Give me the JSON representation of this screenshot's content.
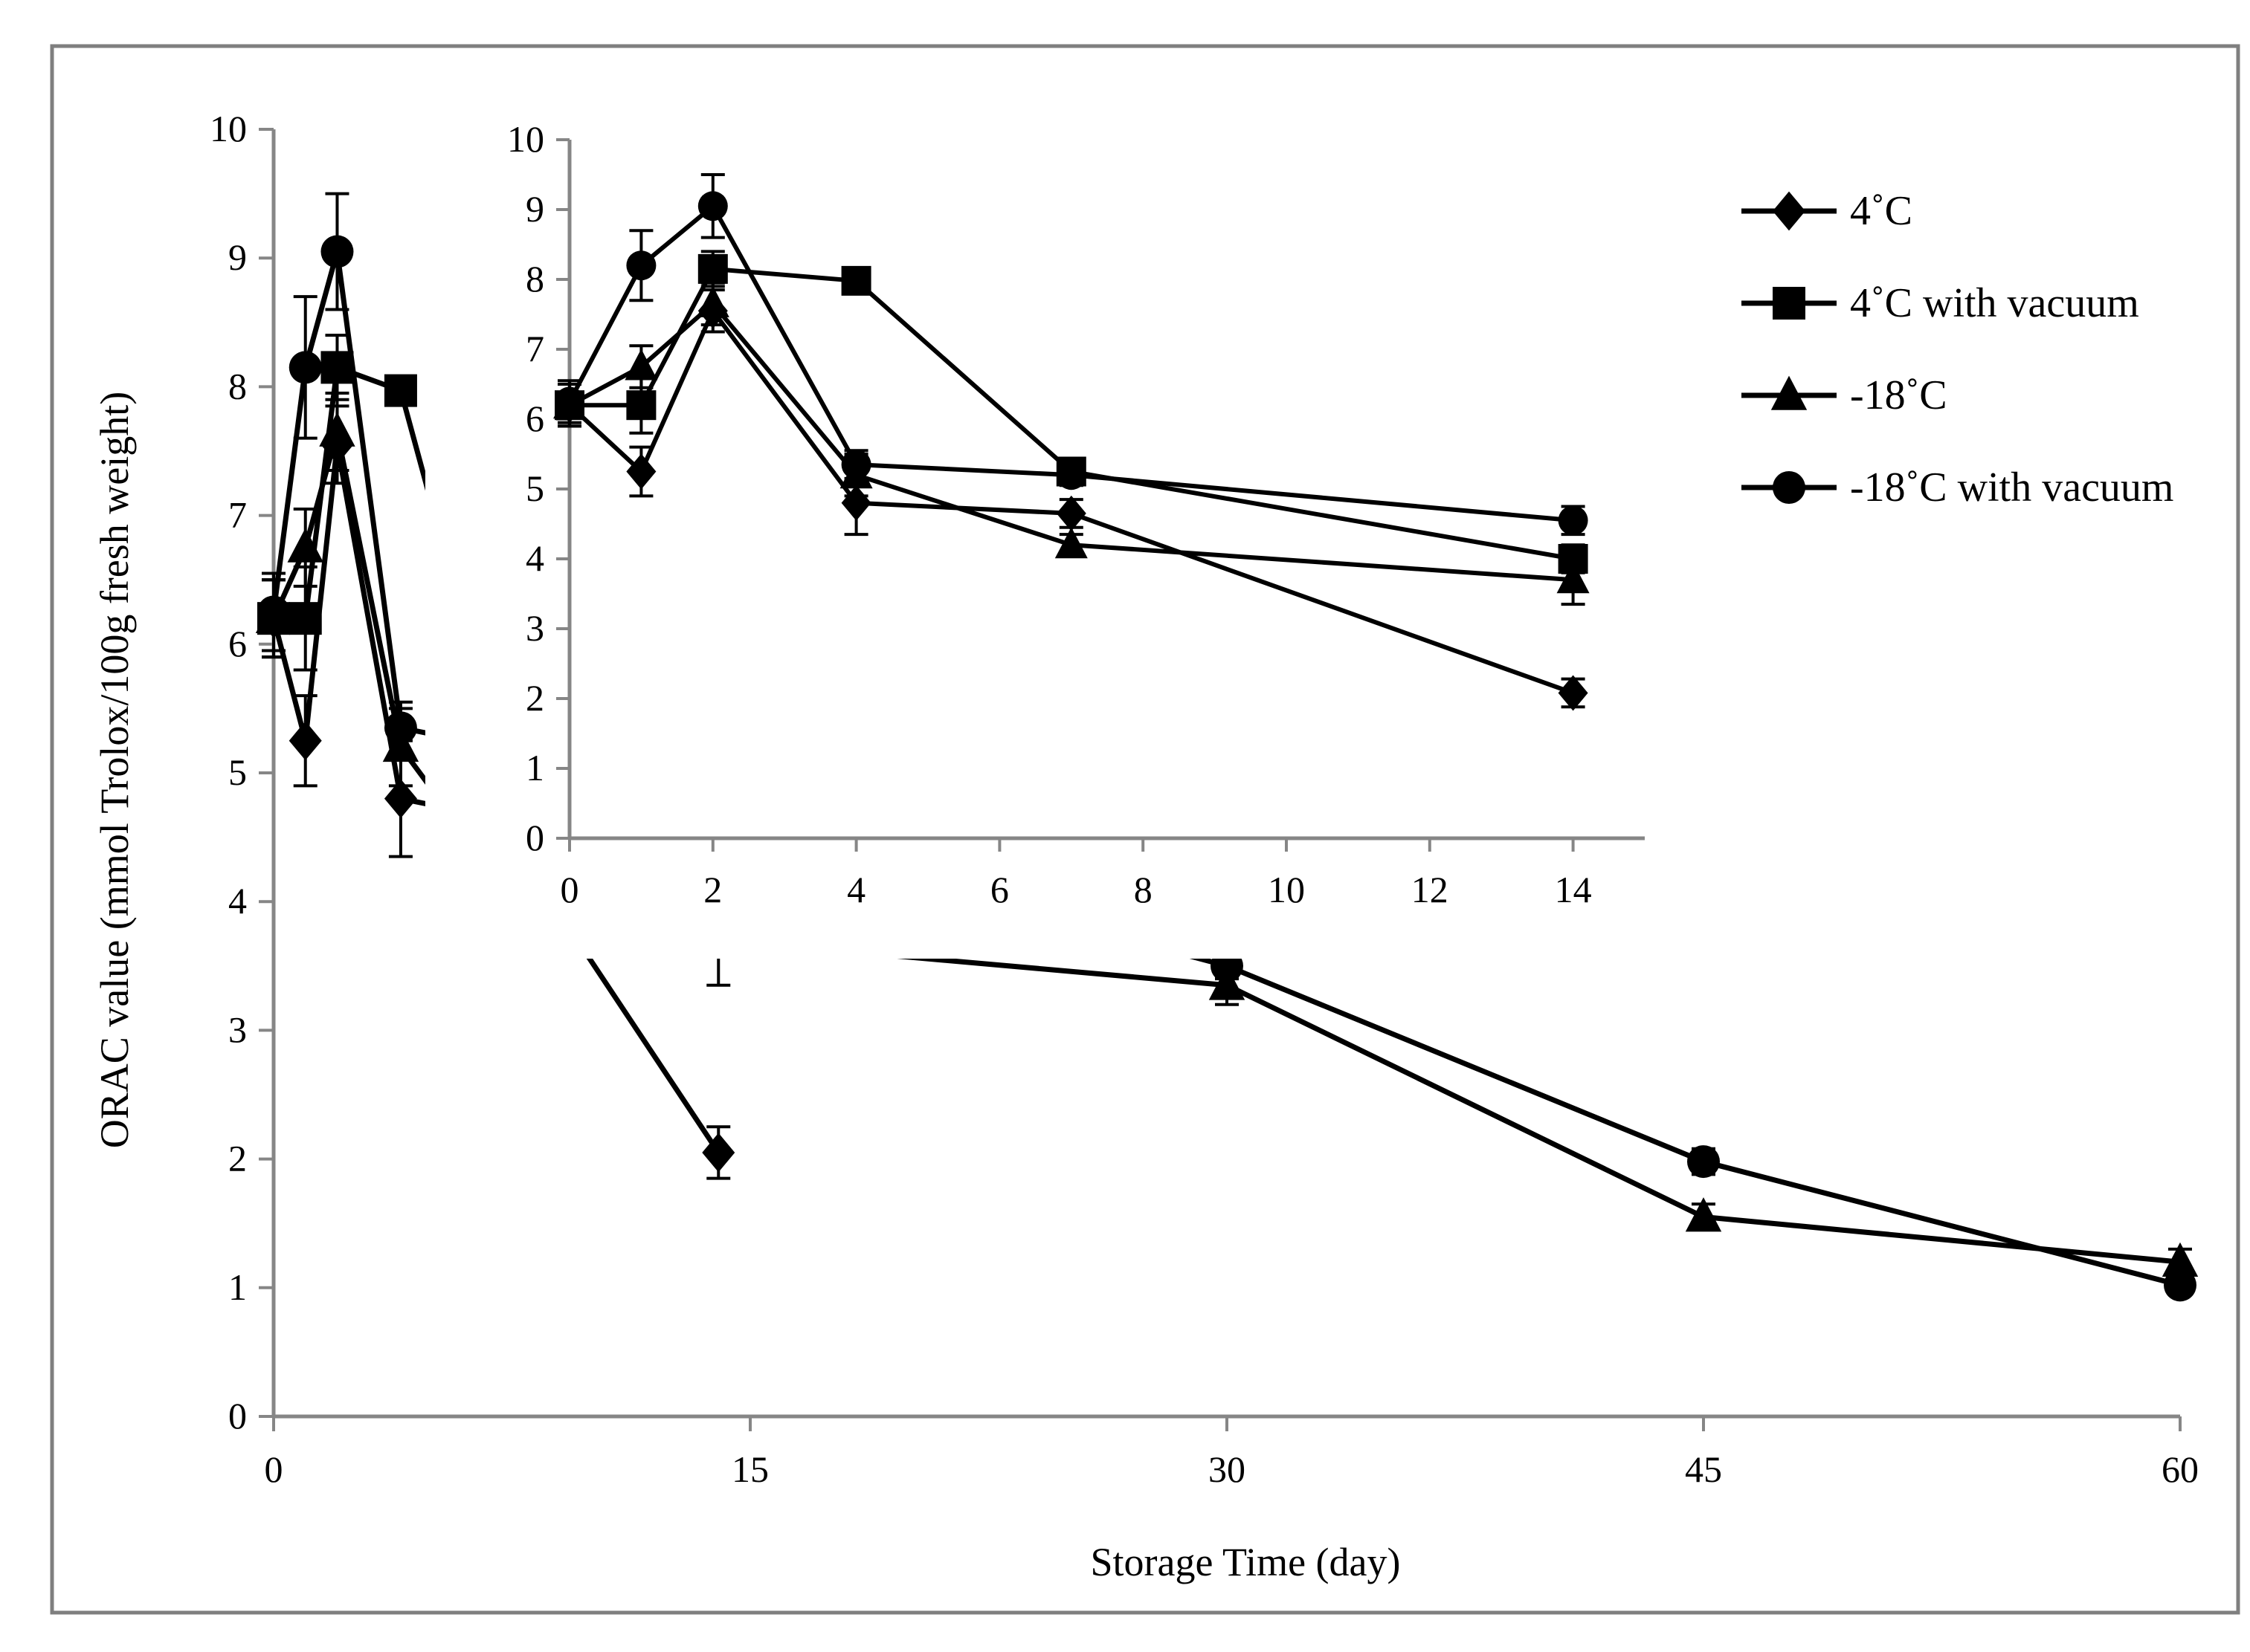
{
  "colors": {
    "frame": "#7f7f7f",
    "axis": "#868686",
    "series": "#000000",
    "background": "#ffffff"
  },
  "chart_data": [
    {
      "id": "main",
      "type": "line",
      "title": "",
      "xlabel": "Storage Time (day)",
      "ylabel": "ORAC value (mmol Trolox/100g fresh weight)",
      "xlim": [
        0,
        60
      ],
      "ylim": [
        0,
        10
      ],
      "x_ticks": [
        0,
        15,
        30,
        45,
        60
      ],
      "y_ticks": [
        0,
        1,
        2,
        3,
        4,
        5,
        6,
        7,
        8,
        9,
        10
      ],
      "grid": false,
      "legend_position": "top-right",
      "series": [
        {
          "name": "4˚C",
          "marker": "diamond",
          "x": [
            0,
            1,
            2,
            4,
            7,
            14
          ],
          "y": [
            6.2,
            5.25,
            7.55,
            4.8,
            4.65,
            2.05
          ],
          "err": [
            0.3,
            0.35,
            0.3,
            0.45,
            0.2,
            0.2
          ]
        },
        {
          "name": "4˚C with vacuum",
          "marker": "square",
          "x": [
            0,
            1,
            2,
            4,
            7,
            14
          ],
          "y": [
            6.2,
            6.2,
            8.15,
            7.97,
            5.25,
            4.0
          ],
          "err": [
            0.3,
            0.4,
            0.25,
            0.1,
            0.15,
            0.2
          ]
        },
        {
          "name": "-18˚C",
          "marker": "triangle",
          "x": [
            0,
            1,
            2,
            4,
            7,
            14,
            30,
            45,
            60
          ],
          "y": [
            6.2,
            6.75,
            7.65,
            5.2,
            4.2,
            3.7,
            3.35,
            1.55,
            1.2
          ],
          "err": [
            0.3,
            0.3,
            0.3,
            0.3,
            0.15,
            0.35,
            0.15,
            0.1,
            0.1
          ]
        },
        {
          "name": "-18˚C with vacuum",
          "marker": "circle",
          "x": [
            0,
            1,
            2,
            4,
            7,
            14,
            30,
            45,
            60
          ],
          "y": [
            6.25,
            8.15,
            9.05,
            5.35,
            5.2,
            4.55,
            3.5,
            1.98,
            1.02
          ],
          "err": [
            0.3,
            0.55,
            0.45,
            0.2,
            0.15,
            0.2,
            0.1,
            0.1,
            0.05
          ]
        }
      ]
    },
    {
      "id": "inset",
      "type": "line",
      "title": "",
      "xlabel": "",
      "ylabel": "",
      "xlim": [
        0,
        15
      ],
      "ylim": [
        0,
        10
      ],
      "x_ticks": [
        0,
        2,
        4,
        6,
        8,
        10,
        12,
        14
      ],
      "y_ticks": [
        0,
        1,
        2,
        3,
        4,
        5,
        6,
        7,
        8,
        9,
        10
      ],
      "grid": false,
      "series": [
        {
          "name": "4˚C",
          "marker": "diamond",
          "x": [
            0,
            1,
            2,
            4,
            7,
            14
          ],
          "y": [
            6.2,
            5.25,
            7.55,
            4.8,
            4.65,
            2.08
          ],
          "err": [
            0.3,
            0.35,
            0.3,
            0.45,
            0.2,
            0.2
          ]
        },
        {
          "name": "4˚C with vacuum",
          "marker": "square",
          "x": [
            0,
            1,
            2,
            4,
            7,
            14
          ],
          "y": [
            6.2,
            6.2,
            8.15,
            7.98,
            5.25,
            4.0
          ],
          "err": [
            0.3,
            0.4,
            0.25,
            0.1,
            0.15,
            0.2
          ]
        },
        {
          "name": "-18˚C",
          "marker": "triangle",
          "x": [
            0,
            1,
            2,
            4,
            7,
            14
          ],
          "y": [
            6.2,
            6.75,
            7.65,
            5.2,
            4.2,
            3.7
          ],
          "err": [
            0.3,
            0.3,
            0.3,
            0.3,
            0.15,
            0.35
          ]
        },
        {
          "name": "-18˚C with vacuum",
          "marker": "circle",
          "x": [
            0,
            1,
            2,
            4,
            7,
            14
          ],
          "y": [
            6.25,
            8.2,
            9.05,
            5.35,
            5.2,
            4.55
          ],
          "err": [
            0.3,
            0.5,
            0.45,
            0.2,
            0.15,
            0.2
          ]
        }
      ]
    }
  ],
  "legend": {
    "items": [
      {
        "label": "4˚C",
        "marker": "diamond"
      },
      {
        "label": "4˚C with vacuum",
        "marker": "square"
      },
      {
        "label": "-18˚C",
        "marker": "triangle"
      },
      {
        "label": "-18˚C with vacuum",
        "marker": "circle"
      }
    ]
  }
}
